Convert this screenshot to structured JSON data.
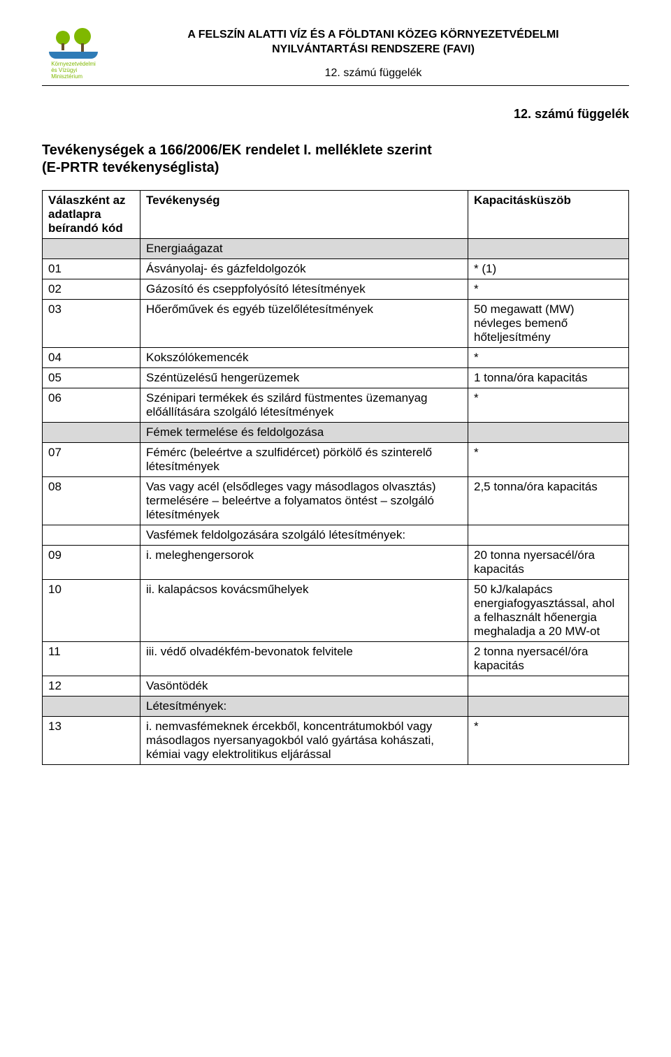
{
  "header": {
    "line1": "A FELSZÍN ALATTI VÍZ ÉS A FÖLDTANI KÖZEG KÖRNYEZETVÉDELMI",
    "line2": "NYILVÁNTARTÁSI RENDSZERE (FAVI)",
    "line3": "12. számú függelék",
    "logo_text1": "Környezetvédelmi",
    "logo_text2": "és Vízügyi",
    "logo_text3": "Minisztérium"
  },
  "titleblock": {
    "appendix": "12. számú függelék",
    "title": "Tevékenységek a 166/2006/EK rendelet I. melléklete szerint",
    "subtitle": "(E-PRTR tevékenységlista)"
  },
  "table": {
    "columns": {
      "code_a": "Válaszként az",
      "code_b": "adatlapra",
      "code_c": "beírandó kód",
      "activity": "Tevékenység",
      "capacity": "Kapacitásküszöb"
    },
    "sections": {
      "energy": "Energiaágazat",
      "metals": "Fémek termelése és feldolgozása",
      "ironproc": "Vasfémek feldolgozására szolgáló létesítmények:",
      "facilities": "Létesítmények:"
    },
    "rows": {
      "r01": {
        "code": "01",
        "act": "Ásványolaj- és gázfeldolgozók",
        "cap": "* (1)"
      },
      "r02": {
        "code": "02",
        "act": "Gázosító és cseppfolyósító létesítmények",
        "cap": "*"
      },
      "r03": {
        "code": "03",
        "act": "Hőerőművek és egyéb tüzelőlétesítmények",
        "cap": "50 megawatt (MW) névleges bemenő hőteljesítmény"
      },
      "r04": {
        "code": "04",
        "act": "Kokszólókemencék",
        "cap": "*"
      },
      "r05": {
        "code": "05",
        "act": "Széntüzelésű hengerüzemek",
        "cap": "1 tonna/óra kapacitás"
      },
      "r06": {
        "code": "06",
        "act": "Szénipari termékek és szilárd füstmentes üzemanyag előállítására szolgáló létesítmények",
        "cap": "*"
      },
      "r07": {
        "code": "07",
        "act": "Fémérc (beleértve a szulfidércet) pörkölő és szinterelő létesítmények",
        "cap": "*"
      },
      "r08": {
        "code": "08",
        "act": "Vas vagy acél (elsődleges vagy másodlagos olvasztás) termelésére – beleértve a folyamatos öntést – szolgáló létesítmények",
        "cap": "2,5 tonna/óra kapacitás"
      },
      "r09": {
        "code": "09",
        "act": "i. meleghengersorok",
        "cap": "20 tonna nyersacél/óra kapacitás"
      },
      "r10": {
        "code": "10",
        "act": "ii. kalapácsos kovácsműhelyek",
        "cap": "50 kJ/kalapács energiafogyasztással, ahol a felhasznált hőenergia meghaladja a 20 MW-ot"
      },
      "r11": {
        "code": "11",
        "act": "iii. védő olvadékfém-bevonatok felvitele",
        "cap": "2 tonna nyersacél/óra kapacitás"
      },
      "r12": {
        "code": "12",
        "act": "Vasöntödék",
        "cap": ""
      },
      "r13": {
        "code": "13",
        "act": "i. nemvasfémeknek ércekből, koncentrátumokból vagy másodlagos nyersanyagokból való gyártása kohászati, kémiai vagy elektrolitikus eljárással",
        "cap": "*"
      }
    }
  },
  "style": {
    "background": "#ffffff",
    "section_bg": "#d9d9d9",
    "text": "#000000",
    "logo_green": "#7fb800",
    "logo_blue": "#2e7bb6",
    "font_body": 17,
    "font_title": 20,
    "font_header": 16
  }
}
